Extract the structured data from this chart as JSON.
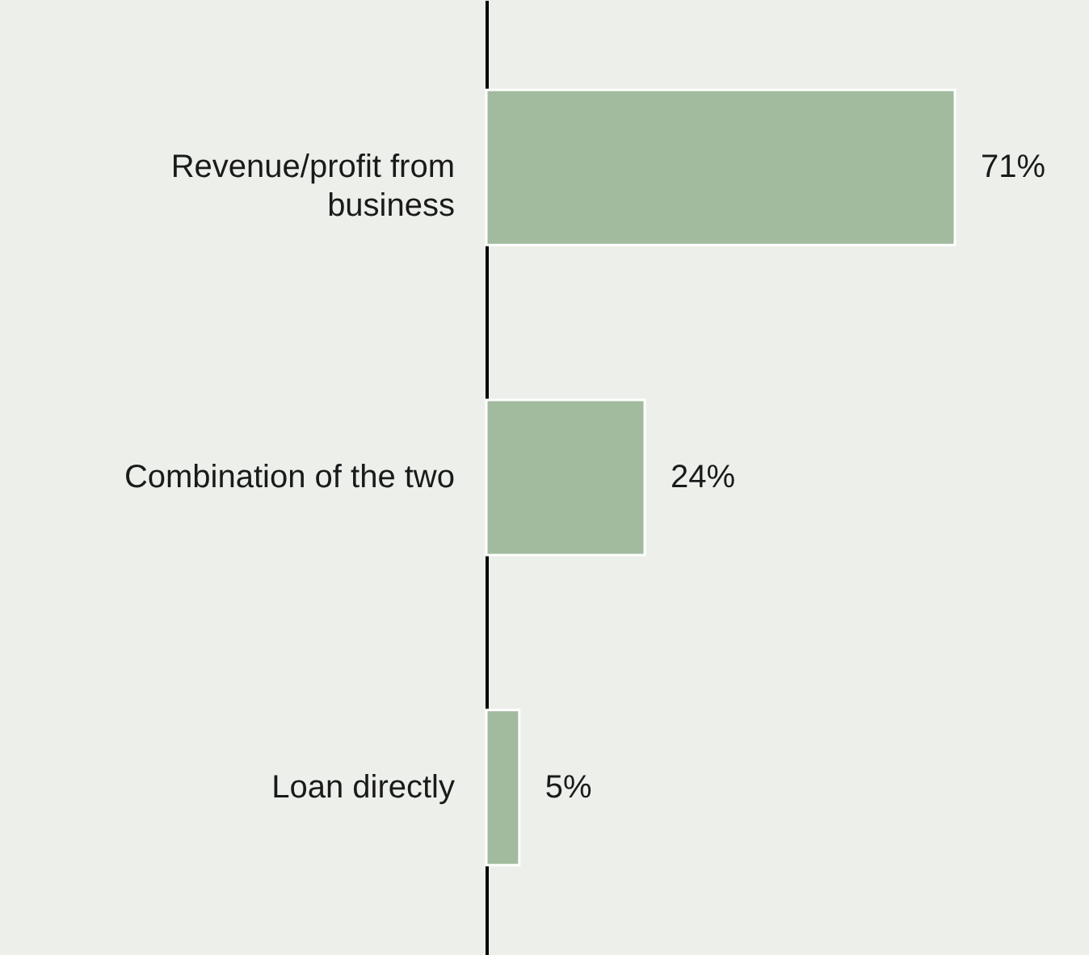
{
  "chart_data": {
    "type": "bar",
    "orientation": "horizontal",
    "categories": [
      "Revenue/profit from business",
      "Combination of the two",
      "Loan directly"
    ],
    "values": [
      71,
      24,
      5
    ],
    "color": "#a2bb9f",
    "value_labels": [
      "71%",
      "24%",
      "5%"
    ]
  }
}
